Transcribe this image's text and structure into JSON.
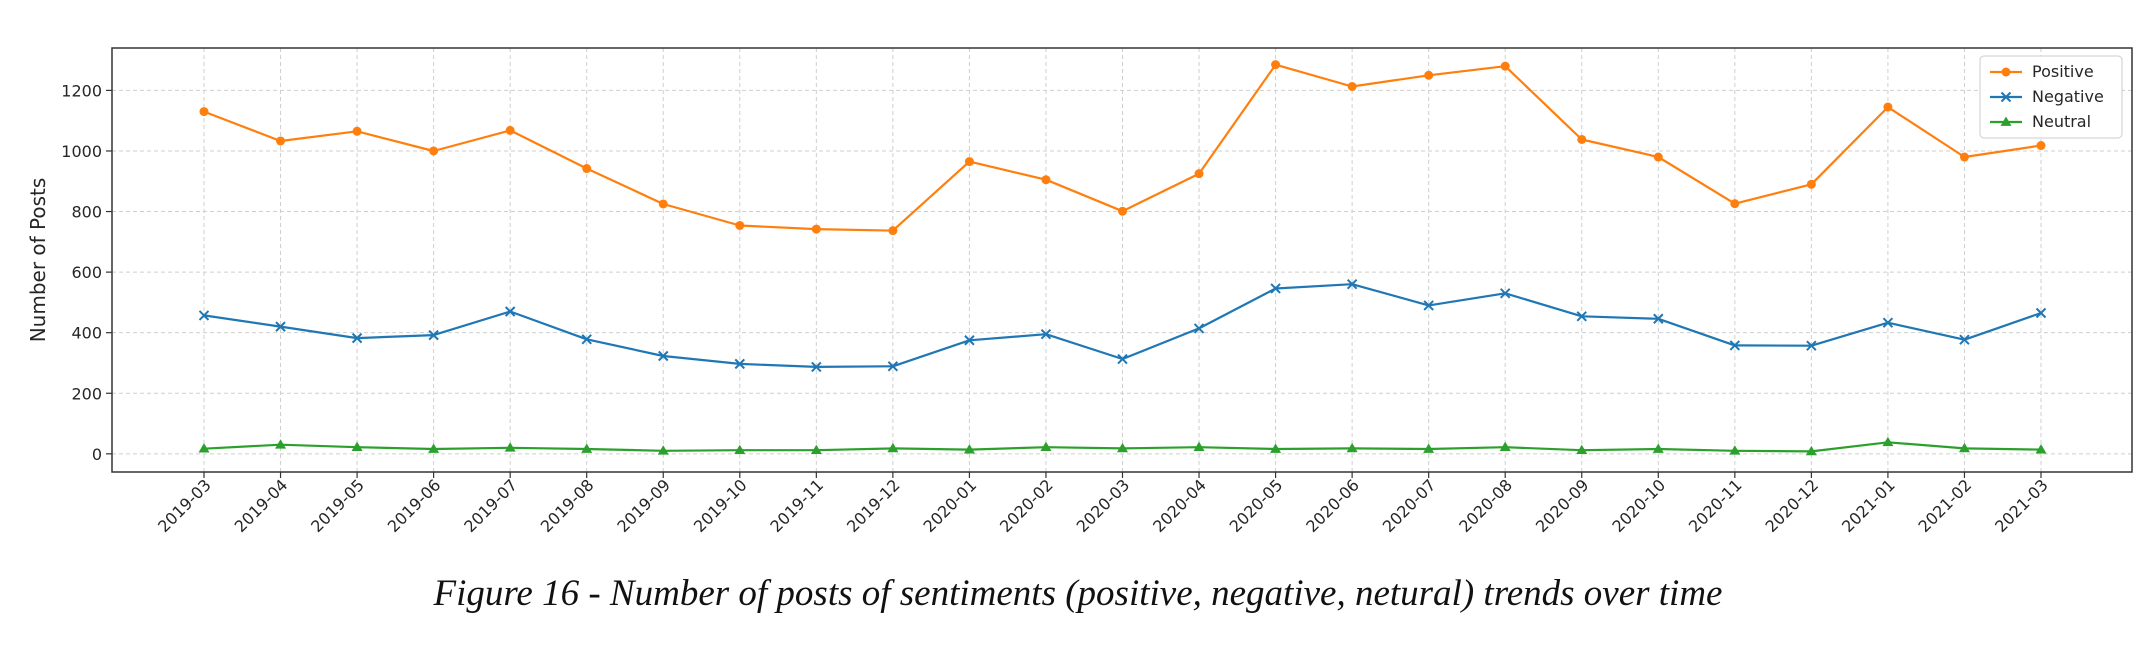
{
  "caption": "Figure 16 - Number of posts of sentiments (positive, negative, netural) trends over time",
  "chart_data": {
    "type": "line",
    "title": "",
    "xlabel": "",
    "ylabel": "Number of Posts",
    "ylim": [
      -60,
      1340
    ],
    "yticks": [
      0,
      200,
      400,
      600,
      800,
      1000,
      1200
    ],
    "grid": true,
    "legend_position": "top-right",
    "categories": [
      "2019-03",
      "2019-04",
      "2019-05",
      "2019-06",
      "2019-07",
      "2019-08",
      "2019-09",
      "2019-10",
      "2019-11",
      "2019-12",
      "2020-01",
      "2020-02",
      "2020-03",
      "2020-04",
      "2020-05",
      "2020-06",
      "2020-07",
      "2020-08",
      "2020-09",
      "2020-10",
      "2020-11",
      "2020-12",
      "2021-01",
      "2021-02",
      "2021-03"
    ],
    "series": [
      {
        "name": "Positive",
        "color": "#ff7f0e",
        "marker": "circle",
        "values": [
          1130,
          1033,
          1065,
          1000,
          1068,
          942,
          825,
          754,
          742,
          737,
          965,
          905,
          801,
          925,
          1285,
          1213,
          1250,
          1280,
          1038,
          980,
          826,
          890,
          1145,
          980,
          1018
        ]
      },
      {
        "name": "Negative",
        "color": "#1f77b4",
        "marker": "x",
        "values": [
          457,
          420,
          382,
          392,
          470,
          378,
          323,
          297,
          287,
          289,
          375,
          395,
          313,
          414,
          546,
          560,
          490,
          530,
          454,
          446,
          358,
          357,
          433,
          377,
          465
        ]
      },
      {
        "name": "Neutral",
        "color": "#2ca02c",
        "marker": "triangle",
        "values": [
          17,
          30,
          22,
          16,
          20,
          16,
          10,
          12,
          12,
          18,
          14,
          22,
          18,
          22,
          16,
          18,
          16,
          22,
          12,
          16,
          10,
          8,
          38,
          18,
          14
        ]
      }
    ]
  }
}
